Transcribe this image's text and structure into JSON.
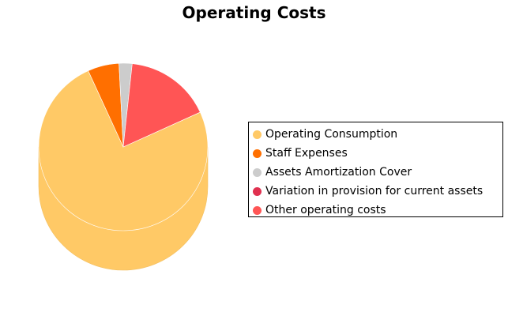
{
  "chart_data": {
    "type": "pie",
    "title": "Operating Costs",
    "style": "3d-cylinder",
    "legend_position": "right",
    "slices": [
      {
        "label": "Operating Consumption",
        "value": 75.0,
        "color": "#ffc966"
      },
      {
        "label": "Staff Expenses",
        "value": 6.0,
        "color": "#ff6f00"
      },
      {
        "label": "Assets Amortization Cover",
        "value": 2.5,
        "color": "#cccccc"
      },
      {
        "label": "Variation in provision for current assets",
        "value": 0.0,
        "color": "#e0304f"
      },
      {
        "label": "Other operating costs",
        "value": 16.5,
        "color": "#ff5555"
      }
    ]
  }
}
